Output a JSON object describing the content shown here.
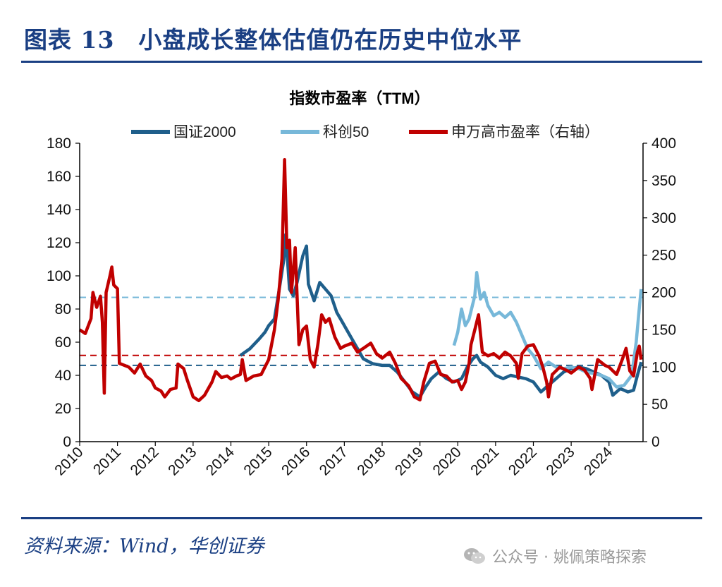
{
  "header": {
    "title": "图表 13　小盘成长整体估值仍在历史中位水平"
  },
  "footer": {
    "source": "资料来源：Wind，华创证券",
    "watermark": "公众号 · 姚佩策略探索",
    "watermark_icon": "wechat-icon"
  },
  "chart_data": {
    "type": "line",
    "title": "指数市盈率（TTM）",
    "legend_position": "top",
    "x_ticks": [
      "2010",
      "2011",
      "2012",
      "2013",
      "2014",
      "2015",
      "2016",
      "2017",
      "2018",
      "2019",
      "2020",
      "2021",
      "2022",
      "2023",
      "2024"
    ],
    "y_left": {
      "min": 0,
      "max": 180,
      "ticks": [
        0,
        20,
        40,
        60,
        80,
        100,
        120,
        140,
        160,
        180
      ]
    },
    "y_right": {
      "min": 0,
      "max": 400,
      "ticks": [
        0,
        50,
        100,
        150,
        200,
        250,
        300,
        350,
        400
      ]
    },
    "grid": false,
    "series": [
      {
        "name": "国证2000",
        "axis": "left",
        "color": "#1f5f8b",
        "points": [
          [
            2014.25,
            52
          ],
          [
            2014.5,
            56
          ],
          [
            2014.75,
            62
          ],
          [
            2014.9,
            66
          ],
          [
            2015.0,
            70
          ],
          [
            2015.15,
            74
          ],
          [
            2015.3,
            95
          ],
          [
            2015.4,
            110
          ],
          [
            2015.45,
            125
          ],
          [
            2015.55,
            92
          ],
          [
            2015.65,
            88
          ],
          [
            2015.75,
            96
          ],
          [
            2015.9,
            112
          ],
          [
            2016.0,
            118
          ],
          [
            2016.05,
            95
          ],
          [
            2016.2,
            85
          ],
          [
            2016.35,
            96
          ],
          [
            2016.5,
            92
          ],
          [
            2016.65,
            88
          ],
          [
            2016.8,
            78
          ],
          [
            2016.95,
            72
          ],
          [
            2017.1,
            66
          ],
          [
            2017.3,
            58
          ],
          [
            2017.5,
            50
          ],
          [
            2017.75,
            47
          ],
          [
            2018.0,
            46
          ],
          [
            2018.2,
            46
          ],
          [
            2018.4,
            42
          ],
          [
            2018.6,
            36
          ],
          [
            2018.8,
            30
          ],
          [
            2019.0,
            27
          ],
          [
            2019.15,
            33
          ],
          [
            2019.3,
            38
          ],
          [
            2019.5,
            42
          ],
          [
            2019.7,
            38
          ],
          [
            2019.9,
            36
          ],
          [
            2020.1,
            38
          ],
          [
            2020.25,
            45
          ],
          [
            2020.4,
            50
          ],
          [
            2020.5,
            52
          ],
          [
            2020.6,
            48
          ],
          [
            2020.8,
            45
          ],
          [
            2021.0,
            40
          ],
          [
            2021.2,
            38
          ],
          [
            2021.4,
            40
          ],
          [
            2021.6,
            39
          ],
          [
            2021.8,
            38
          ],
          [
            2022.0,
            36
          ],
          [
            2022.2,
            30
          ],
          [
            2022.4,
            34
          ],
          [
            2022.6,
            38
          ],
          [
            2022.8,
            42
          ],
          [
            2023.0,
            44
          ],
          [
            2023.2,
            45
          ],
          [
            2023.4,
            44
          ],
          [
            2023.6,
            42
          ],
          [
            2023.8,
            40
          ],
          [
            2024.0,
            36
          ],
          [
            2024.1,
            28
          ],
          [
            2024.3,
            32
          ],
          [
            2024.5,
            30
          ],
          [
            2024.65,
            31
          ],
          [
            2024.75,
            40
          ],
          [
            2024.85,
            48
          ]
        ]
      },
      {
        "name": "科创50",
        "axis": "left",
        "color": "#77b8d9",
        "points": [
          [
            2019.9,
            58
          ],
          [
            2020.0,
            66
          ],
          [
            2020.1,
            80
          ],
          [
            2020.2,
            70
          ],
          [
            2020.3,
            74
          ],
          [
            2020.45,
            88
          ],
          [
            2020.5,
            102
          ],
          [
            2020.6,
            86
          ],
          [
            2020.7,
            90
          ],
          [
            2020.8,
            82
          ],
          [
            2020.95,
            76
          ],
          [
            2021.1,
            78
          ],
          [
            2021.25,
            75
          ],
          [
            2021.4,
            78
          ],
          [
            2021.55,
            72
          ],
          [
            2021.7,
            64
          ],
          [
            2021.85,
            56
          ],
          [
            2022.0,
            52
          ],
          [
            2022.2,
            44
          ],
          [
            2022.4,
            48
          ],
          [
            2022.6,
            45
          ],
          [
            2022.8,
            44
          ],
          [
            2023.0,
            45
          ],
          [
            2023.2,
            44
          ],
          [
            2023.4,
            42
          ],
          [
            2023.6,
            41
          ],
          [
            2023.8,
            40
          ],
          [
            2024.0,
            38
          ],
          [
            2024.2,
            33
          ],
          [
            2024.4,
            34
          ],
          [
            2024.6,
            40
          ],
          [
            2024.72,
            60
          ],
          [
            2024.8,
            80
          ],
          [
            2024.85,
            92
          ]
        ]
      },
      {
        "name": "申万高市盈率（右轴）",
        "axis": "right",
        "color": "#c00000",
        "points": [
          [
            2010.0,
            150
          ],
          [
            2010.15,
            145
          ],
          [
            2010.3,
            165
          ],
          [
            2010.35,
            200
          ],
          [
            2010.45,
            180
          ],
          [
            2010.55,
            195
          ],
          [
            2010.6,
            160
          ],
          [
            2010.65,
            65
          ],
          [
            2010.7,
            200
          ],
          [
            2010.8,
            222
          ],
          [
            2010.85,
            234
          ],
          [
            2010.9,
            210
          ],
          [
            2011.0,
            205
          ],
          [
            2011.05,
            105
          ],
          [
            2011.3,
            100
          ],
          [
            2011.45,
            92
          ],
          [
            2011.6,
            104
          ],
          [
            2011.75,
            88
          ],
          [
            2011.9,
            82
          ],
          [
            2012.0,
            72
          ],
          [
            2012.15,
            68
          ],
          [
            2012.25,
            60
          ],
          [
            2012.4,
            70
          ],
          [
            2012.55,
            72
          ],
          [
            2012.6,
            104
          ],
          [
            2012.75,
            98
          ],
          [
            2012.85,
            82
          ],
          [
            2013.0,
            60
          ],
          [
            2013.15,
            55
          ],
          [
            2013.3,
            62
          ],
          [
            2013.5,
            80
          ],
          [
            2013.6,
            94
          ],
          [
            2013.75,
            86
          ],
          [
            2013.9,
            88
          ],
          [
            2014.0,
            84
          ],
          [
            2014.15,
            88
          ],
          [
            2014.25,
            90
          ],
          [
            2014.3,
            110
          ],
          [
            2014.4,
            82
          ],
          [
            2014.6,
            88
          ],
          [
            2014.8,
            90
          ],
          [
            2015.0,
            110
          ],
          [
            2015.15,
            150
          ],
          [
            2015.25,
            190
          ],
          [
            2015.35,
            245
          ],
          [
            2015.42,
            378
          ],
          [
            2015.48,
            260
          ],
          [
            2015.55,
            270
          ],
          [
            2015.6,
            200
          ],
          [
            2015.7,
            260
          ],
          [
            2015.8,
            130
          ],
          [
            2015.9,
            150
          ],
          [
            2016.0,
            155
          ],
          [
            2016.1,
            110
          ],
          [
            2016.2,
            100
          ],
          [
            2016.3,
            130
          ],
          [
            2016.4,
            170
          ],
          [
            2016.5,
            160
          ],
          [
            2016.6,
            165
          ],
          [
            2016.75,
            140
          ],
          [
            2016.9,
            125
          ],
          [
            2017.0,
            128
          ],
          [
            2017.2,
            132
          ],
          [
            2017.35,
            120
          ],
          [
            2017.5,
            125
          ],
          [
            2017.7,
            132
          ],
          [
            2017.85,
            118
          ],
          [
            2018.0,
            112
          ],
          [
            2018.2,
            120
          ],
          [
            2018.35,
            105
          ],
          [
            2018.5,
            85
          ],
          [
            2018.7,
            75
          ],
          [
            2018.85,
            60
          ],
          [
            2019.0,
            56
          ],
          [
            2019.1,
            80
          ],
          [
            2019.25,
            105
          ],
          [
            2019.4,
            108
          ],
          [
            2019.55,
            90
          ],
          [
            2019.7,
            88
          ],
          [
            2019.85,
            80
          ],
          [
            2020.0,
            82
          ],
          [
            2020.1,
            70
          ],
          [
            2020.2,
            80
          ],
          [
            2020.3,
            105
          ],
          [
            2020.35,
            130
          ],
          [
            2020.45,
            150
          ],
          [
            2020.55,
            170
          ],
          [
            2020.65,
            120
          ],
          [
            2020.8,
            115
          ],
          [
            2020.95,
            118
          ],
          [
            2021.1,
            112
          ],
          [
            2021.25,
            120
          ],
          [
            2021.4,
            115
          ],
          [
            2021.55,
            105
          ],
          [
            2021.6,
            85
          ],
          [
            2021.7,
            118
          ],
          [
            2021.85,
            128
          ],
          [
            2022.0,
            130
          ],
          [
            2022.15,
            115
          ],
          [
            2022.25,
            100
          ],
          [
            2022.35,
            80
          ],
          [
            2022.4,
            60
          ],
          [
            2022.5,
            90
          ],
          [
            2022.7,
            100
          ],
          [
            2022.9,
            95
          ],
          [
            2023.0,
            92
          ],
          [
            2023.2,
            100
          ],
          [
            2023.35,
            96
          ],
          [
            2023.5,
            85
          ],
          [
            2023.55,
            70
          ],
          [
            2023.7,
            110
          ],
          [
            2023.9,
            102
          ],
          [
            2024.0,
            100
          ],
          [
            2024.2,
            90
          ],
          [
            2024.35,
            110
          ],
          [
            2024.45,
            125
          ],
          [
            2024.55,
            95
          ],
          [
            2024.65,
            88
          ],
          [
            2024.75,
            120
          ],
          [
            2024.8,
            128
          ],
          [
            2024.85,
            110
          ]
        ]
      }
    ],
    "reference_lines": [
      {
        "axis": "left",
        "value": 87,
        "color": "#77b8d9",
        "style": "dashed"
      },
      {
        "axis": "left",
        "value": 52,
        "color": "#c00000",
        "style": "dashed"
      },
      {
        "axis": "left",
        "value": 46,
        "color": "#1f5f8b",
        "style": "dashed"
      }
    ]
  }
}
